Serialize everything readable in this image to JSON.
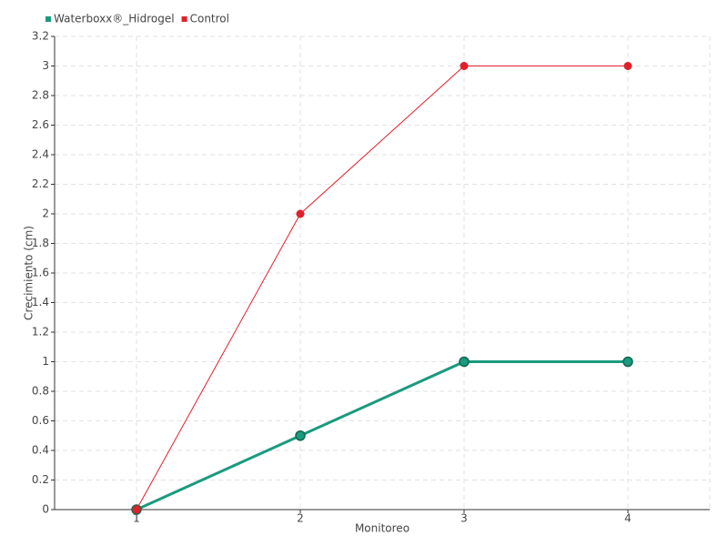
{
  "chart_data": {
    "type": "line",
    "x_label": "Monitoreo",
    "y_label": "Crecimiento (cm)",
    "categories": [
      "1",
      "2",
      "3",
      "4"
    ],
    "series": [
      {
        "name": "Waterboxx®_Hidrogel",
        "color": "#1a9a7e",
        "values": [
          0,
          0.5,
          1,
          1
        ]
      },
      {
        "name": "Control",
        "color": "#e0202a",
        "values": [
          0,
          2,
          3,
          3
        ]
      }
    ],
    "ylim": [
      0,
      3.2
    ],
    "yticks": [
      0,
      0.2,
      0.4,
      0.6,
      0.8,
      1,
      1.2,
      1.4,
      1.6,
      1.8,
      2,
      2.2,
      2.4,
      2.6,
      2.8,
      3,
      3.2
    ],
    "grid": true,
    "legend": "top-left"
  }
}
